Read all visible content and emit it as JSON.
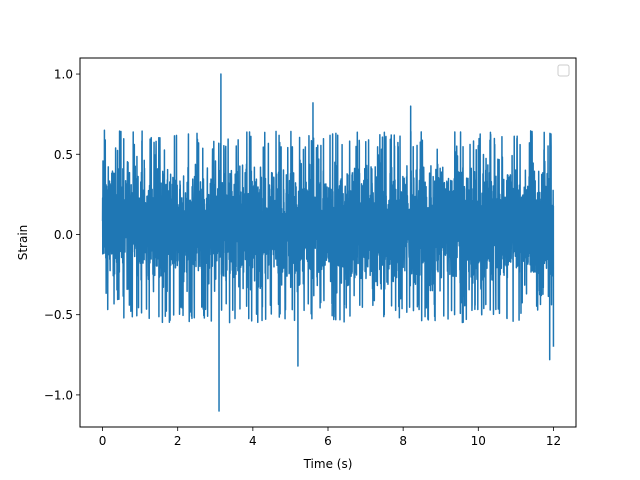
{
  "chart_data": {
    "type": "line",
    "title": "",
    "xlabel": "Time (s)",
    "ylabel": "Strain",
    "xlim": [
      -0.6,
      12.6
    ],
    "ylim": [
      -1.2,
      1.1
    ],
    "grid": false,
    "legend": {
      "placement": "upper-right",
      "entries": []
    },
    "x_ticks": [
      0,
      2,
      4,
      6,
      8,
      10,
      12
    ],
    "x_tick_labels": [
      "0",
      "2",
      "4",
      "6",
      "8",
      "10",
      "12"
    ],
    "y_ticks": [
      -1.0,
      -0.5,
      0.0,
      0.5,
      1.0
    ],
    "y_tick_labels": [
      "−1.0",
      "−0.5",
      "0.0",
      "0.5",
      "1.0"
    ],
    "series": [
      {
        "color": "#1f77b4",
        "x_range": [
          0,
          12
        ],
        "typical_envelope": [
          -0.45,
          0.55
        ],
        "extremes": [
          {
            "x": 3.15,
            "y": 1.0
          },
          {
            "x": 3.1,
            "y": -1.1
          },
          {
            "x": 5.6,
            "y": 0.82
          },
          {
            "x": 5.2,
            "y": -0.82
          },
          {
            "x": 8.2,
            "y": 0.8
          },
          {
            "x": 11.9,
            "y": -0.78
          },
          {
            "x": 0.05,
            "y": 0.65
          },
          {
            "x": 12.0,
            "y": -0.7
          }
        ]
      }
    ]
  }
}
